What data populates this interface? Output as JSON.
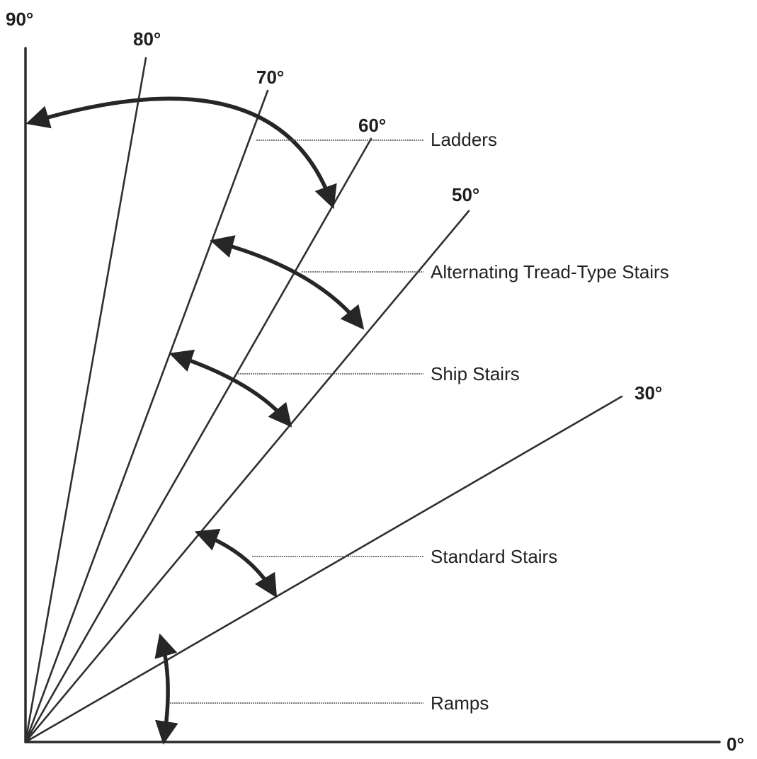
{
  "angle_labels": {
    "deg90": "90°",
    "deg80": "80°",
    "deg70": "70°",
    "deg60": "60°",
    "deg50": "50°",
    "deg30": "30°",
    "deg0": "0°"
  },
  "regions": {
    "ladders": "Ladders",
    "alternating": "Alternating Tread-Type Stairs",
    "ship_stairs": "Ship Stairs",
    "standard_stairs": "Standard Stairs",
    "ramps": "Ramps"
  }
}
